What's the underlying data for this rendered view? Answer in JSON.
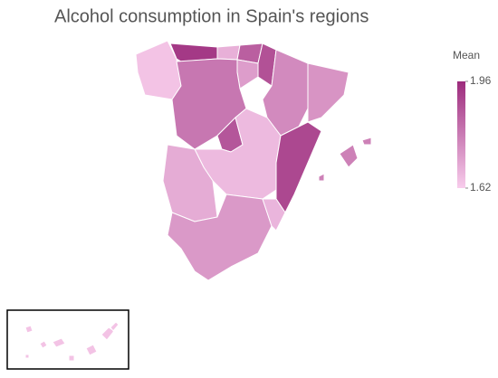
{
  "chart_data": {
    "type": "choropleth",
    "title": "Alcohol consumption in Spain's regions",
    "legend_title": "Mean",
    "values": [
      1.64,
      1.93,
      1.68,
      1.85,
      1.88,
      1.72,
      1.8,
      1.76,
      1.74,
      1.87,
      1.66,
      1.9,
      1.69,
      1.73,
      1.67,
      1.78,
      1.64
    ],
    "clim": [
      1.62,
      1.96
    ],
    "cticks": [
      1.62,
      1.96
    ],
    "colorscale": [
      "#f8cdec",
      "#9c2b7c"
    ]
  }
}
